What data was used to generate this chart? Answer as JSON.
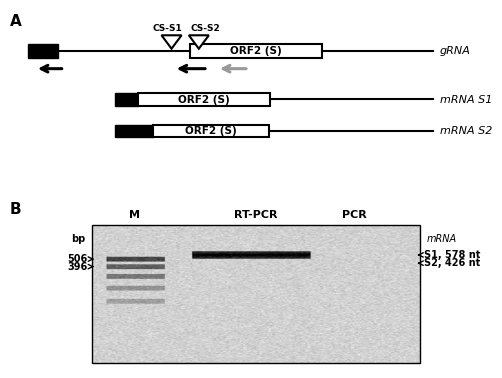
{
  "panel_A_label": "A",
  "panel_B_label": "B",
  "grna_label": "gRNA",
  "mrna_s1_label": "mRNA S1",
  "mrna_s2_label": "mRNA S2",
  "orf2_label": "ORF2 (S)",
  "cs_s1_label": "CS-S1",
  "cs_s2_label": "CS-S2",
  "gel_columns": [
    "M",
    "RT-PCR",
    "PCR"
  ],
  "gel_left_label": "bp",
  "gel_right_label": "mRNA",
  "bp_506": "506",
  "bp_396": "396",
  "s1_label": "S1, 578 nt",
  "s2_label": "S2, 426 nt",
  "bg_color": "#ffffff",
  "black": "#000000",
  "gray": "#999999",
  "gel_bg": "#d0ccc0"
}
